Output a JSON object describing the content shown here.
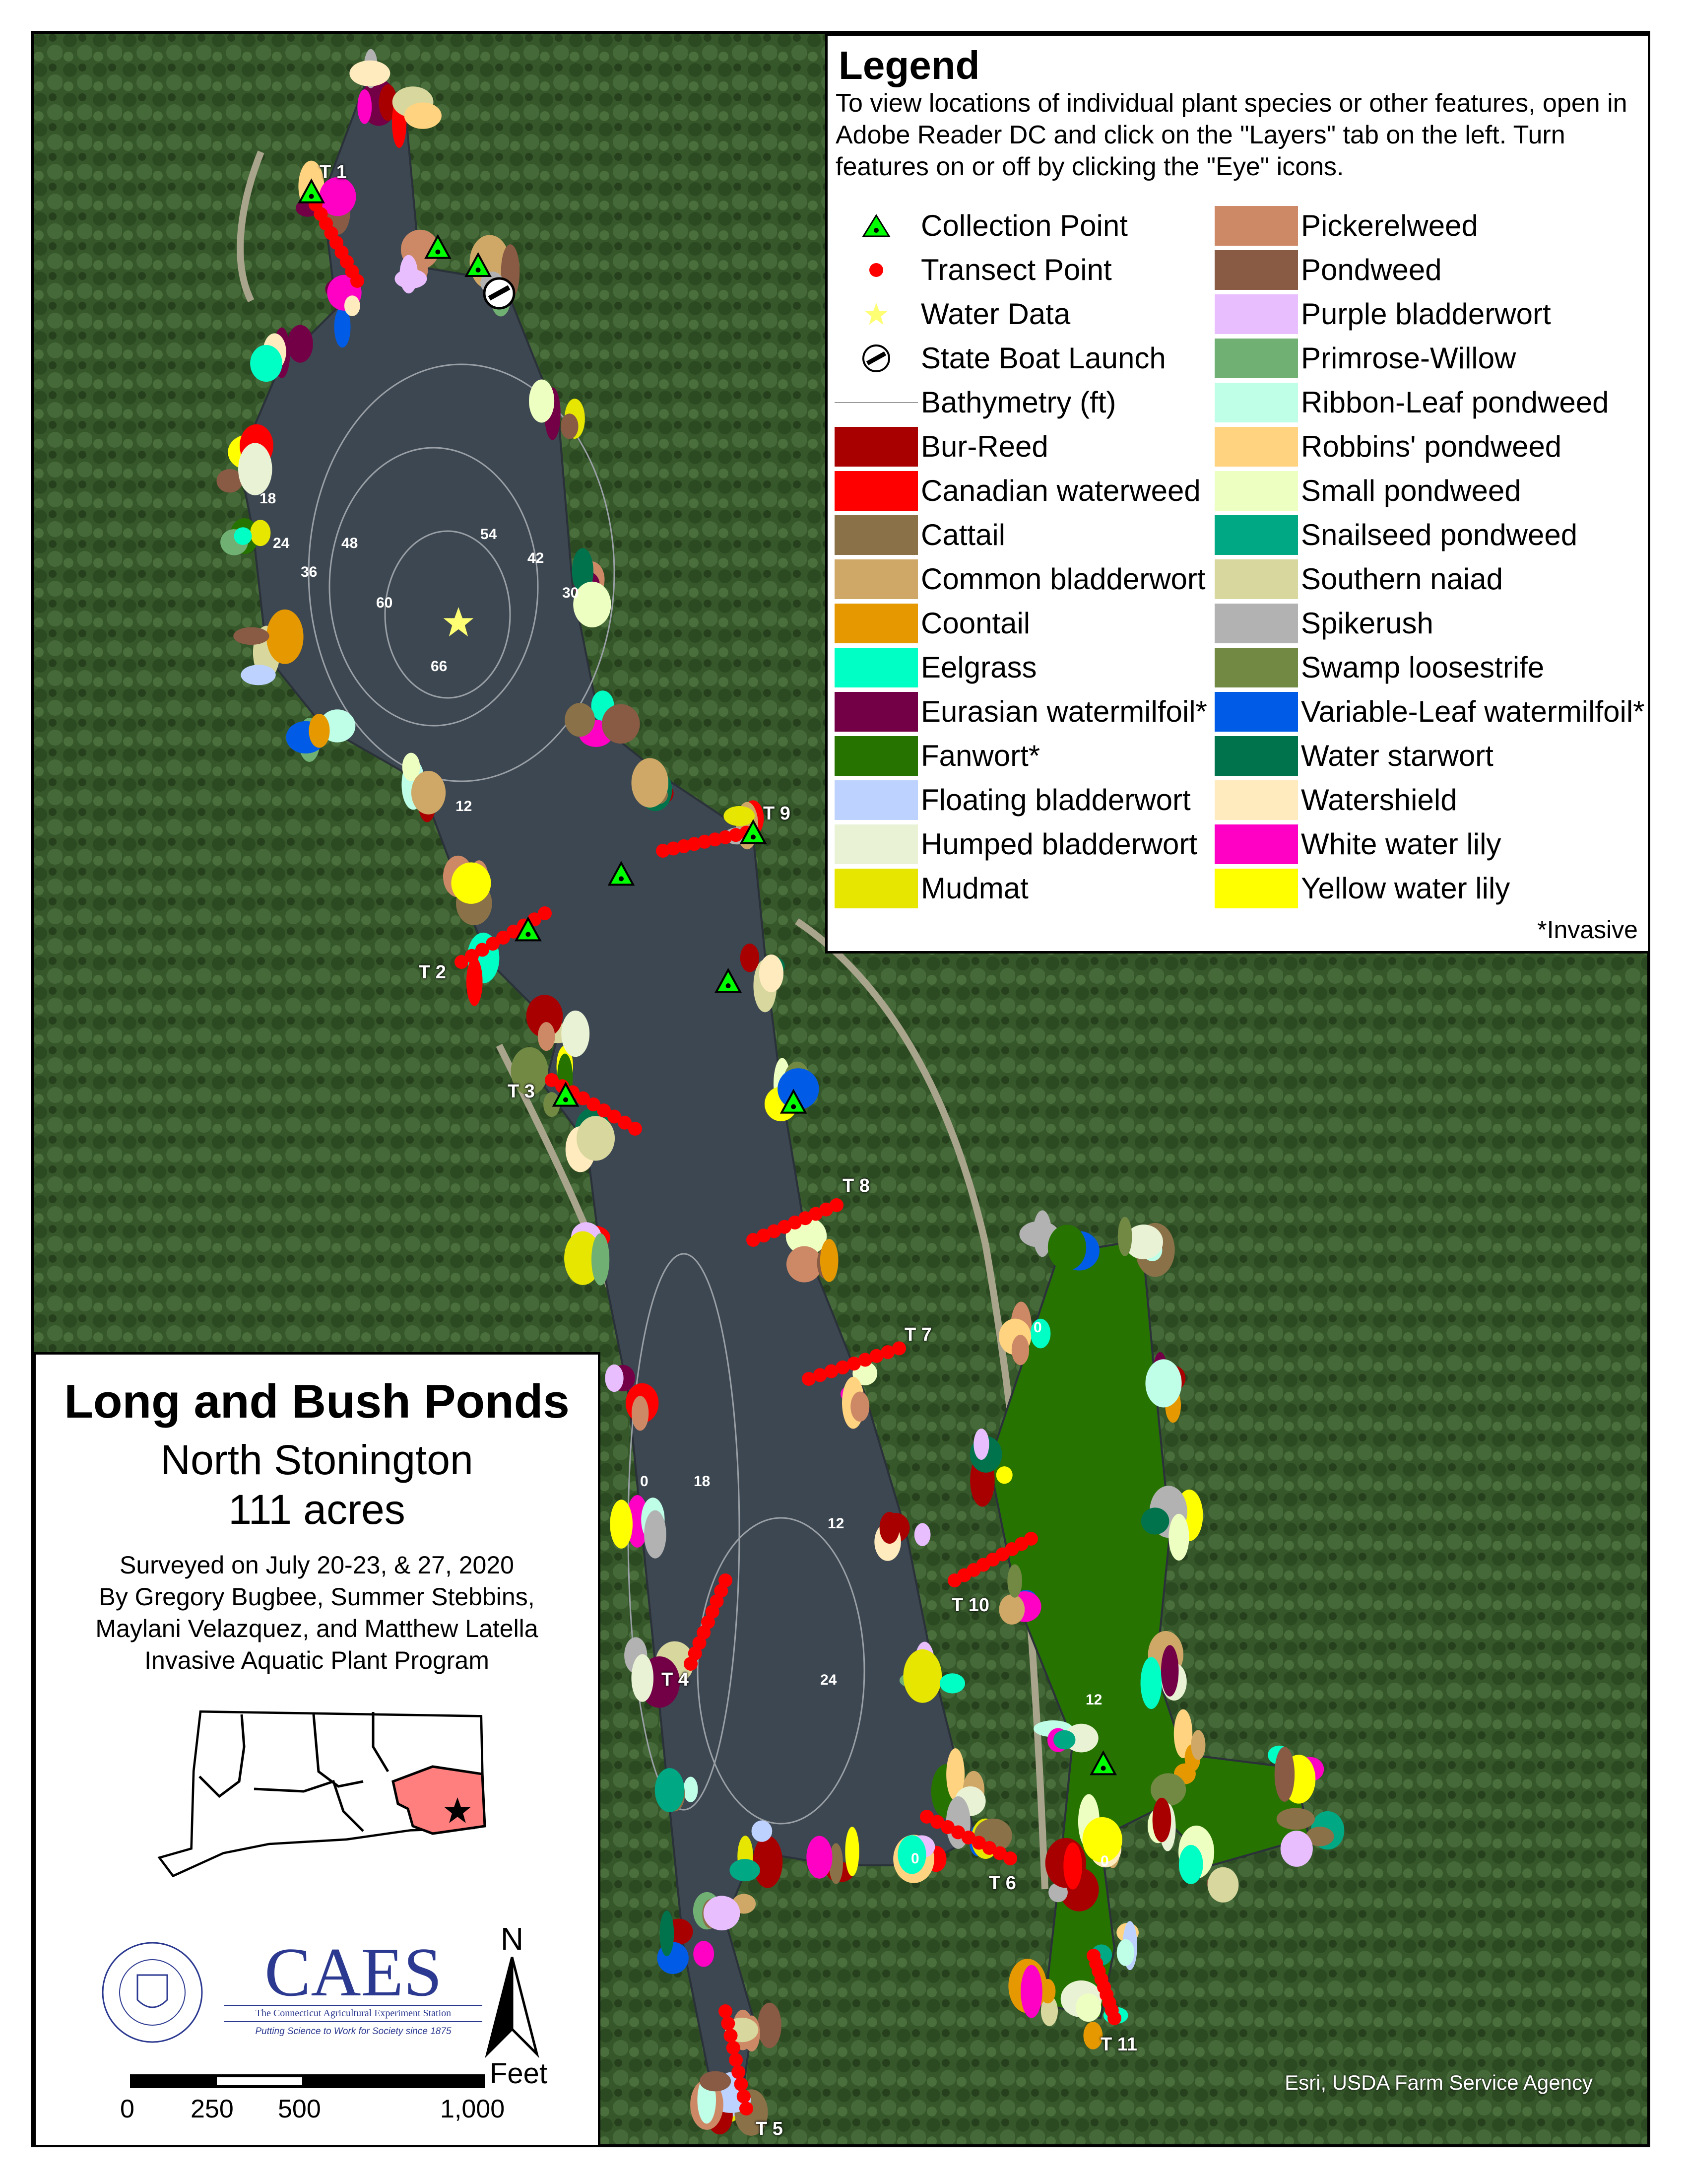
{
  "legend": {
    "title": "Legend",
    "description": "To view locations of individual plant species or other features, open in Adobe Reader DC and click on the \"Layers\" tab on the left. Turn features on or off by clicking the \"Eye\" icons.",
    "symbols": [
      {
        "label": "Collection Point",
        "icon": "green-triangle-icon"
      },
      {
        "label": "Transect Point",
        "icon": "red-dot-icon"
      },
      {
        "label": "Water Data",
        "icon": "yellow-star-icon"
      },
      {
        "label": "State Boat Launch",
        "icon": "boat-launch-icon"
      },
      {
        "label": "Bathymetry (ft)",
        "icon": "gray-line-icon"
      }
    ],
    "species_left": [
      {
        "label": "Bur-Reed",
        "color": "#a80000"
      },
      {
        "label": "Canadian waterweed",
        "color": "#ff0000"
      },
      {
        "label": "Cattail",
        "color": "#8a7148"
      },
      {
        "label": "Common bladderwort",
        "color": "#cfa867"
      },
      {
        "label": "Coontail",
        "color": "#e69800"
      },
      {
        "label": "Eelgrass",
        "color": "#00ffc5"
      },
      {
        "label": "Eurasian watermilfoil*",
        "color": "#730046"
      },
      {
        "label": "Fanwort*",
        "color": "#267300"
      },
      {
        "label": "Floating bladderwort",
        "color": "#bed2ff"
      },
      {
        "label": "Humped bladderwort",
        "color": "#e9f2d5"
      },
      {
        "label": "Mudmat",
        "color": "#e6e600"
      }
    ],
    "species_right": [
      {
        "label": "Pickerelweed",
        "color": "#cd8966"
      },
      {
        "label": "Pondweed",
        "color": "#895a44"
      },
      {
        "label": "Purple bladderwort",
        "color": "#e8beff"
      },
      {
        "label": "Primrose-Willow",
        "color": "#70b073"
      },
      {
        "label": "Ribbon-Leaf pondweed",
        "color": "#bfffe8"
      },
      {
        "label": "Robbins' pondweed",
        "color": "#ffd37f"
      },
      {
        "label": "Small pondweed",
        "color": "#eeffc2"
      },
      {
        "label": "Snailseed pondweed",
        "color": "#00a884"
      },
      {
        "label": "Southern naiad",
        "color": "#d7d79e"
      },
      {
        "label": "Spikerush",
        "color": "#b2b2b2"
      },
      {
        "label": "Swamp loosestrife",
        "color": "#728944"
      },
      {
        "label": "Variable-Leaf watermilfoil*",
        "color": "#005ce6"
      },
      {
        "label": "Water starwort",
        "color": "#00734c"
      },
      {
        "label": "Watershield",
        "color": "#ffebbe"
      },
      {
        "label": "White water lily",
        "color": "#ff00c5"
      },
      {
        "label": "Yellow water lily",
        "color": "#ffff00"
      }
    ],
    "footnote": "*Invasive"
  },
  "title_box": {
    "title": "Long and Bush Ponds",
    "town": "North Stonington",
    "area": "111 acres",
    "survey_lines": [
      "Surveyed on July 20-23, & 27, 2020",
      "By Gregory Bugbee, Summer Stebbins,",
      "Maylani Velazquez, and Matthew Latella",
      "Invasive Aquatic Plant Program"
    ],
    "logo": {
      "name": "CAES",
      "subtitle": "The Connecticut Agricultural Experiment Station",
      "tagline": "Putting Science to Work for Society since 1875",
      "seal_text": "THE CONNECTICUT AGRICULTURAL EXPERIMENT STATION"
    },
    "north_label": "N",
    "scale": {
      "unit": "Feet",
      "ticks": [
        "0",
        "250",
        "500",
        "1,000"
      ]
    },
    "locator_highlight_color": "#ff7f7f"
  },
  "map": {
    "transects": [
      "T 1",
      "T 2",
      "T 3",
      "T 4",
      "T 5",
      "T 6",
      "T 7",
      "T 8",
      "T 9",
      "T 10",
      "T 11"
    ],
    "bathymetry_labels": [
      "18",
      "24",
      "36",
      "48",
      "54",
      "42",
      "30",
      "60",
      "66",
      "12",
      "0",
      "18",
      "12",
      "24",
      "0",
      "12",
      "0",
      "0"
    ],
    "attribution": "Esri, USDA Farm Service Agency",
    "colors": {
      "water": "#3d4751",
      "forest": "#35572a",
      "collection_point": "#00ff00",
      "transect_point": "#ff0000",
      "water_data": "#ffff73"
    }
  }
}
